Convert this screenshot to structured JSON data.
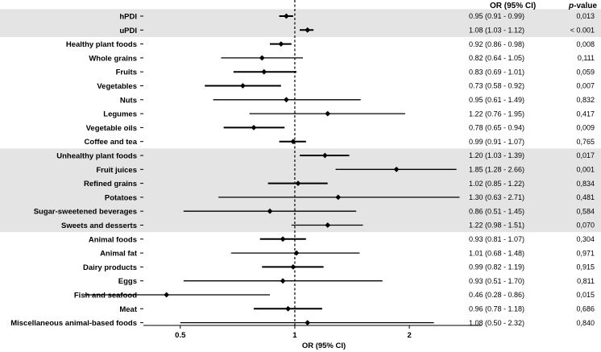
{
  "chart_data": {
    "type": "forest",
    "xlabel": "OR (95% CI)",
    "header": {
      "or_ci": "OR (95% CI)",
      "p_value_prefix": "p",
      "p_value_suffix": "-value"
    },
    "x_scale": "log",
    "xlim": [
      0.4,
      3.1
    ],
    "reference_line": 1,
    "x_ticks": [
      {
        "value": 0.5,
        "label": "0.5"
      },
      {
        "value": 1,
        "label": "1"
      },
      {
        "value": 2,
        "label": "2"
      }
    ],
    "shading": {
      "color": "#e4e4e4",
      "shaded_rows": [
        0,
        1,
        10,
        11,
        12,
        13,
        14,
        15
      ]
    },
    "rows": [
      {
        "label": "hPDI",
        "or": 0.95,
        "lo": 0.91,
        "hi": 0.99,
        "or_ci": "0.95 (0.91 - 0.99)",
        "p": "0,013"
      },
      {
        "label": "uPDI",
        "or": 1.08,
        "lo": 1.03,
        "hi": 1.12,
        "or_ci": "1.08 (1.03 - 1.12)",
        "p": "< 0.001"
      },
      {
        "label": "Healthy plant foods",
        "or": 0.92,
        "lo": 0.86,
        "hi": 0.98,
        "or_ci": "0.92 (0.86 - 0.98)",
        "p": "0,008"
      },
      {
        "label": "Whole grains",
        "or": 0.82,
        "lo": 0.64,
        "hi": 1.05,
        "or_ci": "0.82 (0.64 - 1.05)",
        "p": "0,111"
      },
      {
        "label": "Fruits",
        "or": 0.83,
        "lo": 0.69,
        "hi": 1.01,
        "or_ci": "0.83 (0.69 - 1.01)",
        "p": "0,059"
      },
      {
        "label": "Vegetables",
        "or": 0.73,
        "lo": 0.58,
        "hi": 0.92,
        "or_ci": "0.73 (0.58 - 0.92)",
        "p": "0,007"
      },
      {
        "label": "Nuts",
        "or": 0.95,
        "lo": 0.61,
        "hi": 1.49,
        "or_ci": "0.95 (0.61 - 1.49)",
        "p": "0,832"
      },
      {
        "label": "Legumes",
        "or": 1.22,
        "lo": 0.76,
        "hi": 1.95,
        "or_ci": "1.22 (0.76 - 1.95)",
        "p": "0,417"
      },
      {
        "label": "Vegetable oils",
        "or": 0.78,
        "lo": 0.65,
        "hi": 0.94,
        "or_ci": "0.78 (0.65 - 0.94)",
        "p": "0,009"
      },
      {
        "label": "Coffee and tea",
        "or": 0.99,
        "lo": 0.91,
        "hi": 1.07,
        "or_ci": "0.99 (0.91 - 1.07)",
        "p": "0,765"
      },
      {
        "label": "Unhealthy plant foods",
        "or": 1.2,
        "lo": 1.03,
        "hi": 1.39,
        "or_ci": "1.20 (1.03 - 1.39)",
        "p": "0,017"
      },
      {
        "label": "Fruit juices",
        "or": 1.85,
        "lo": 1.28,
        "hi": 2.66,
        "or_ci": "1.85 (1.28 - 2.66)",
        "p": "0,001"
      },
      {
        "label": "Refined grains",
        "or": 1.02,
        "lo": 0.85,
        "hi": 1.22,
        "or_ci": "1.02 (0.85 - 1.22)",
        "p": "0,834"
      },
      {
        "label": "Potatoes",
        "or": 1.3,
        "lo": 0.63,
        "hi": 2.71,
        "or_ci": "1.30 (0.63 - 2.71)",
        "p": "0,481"
      },
      {
        "label": "Sugar-sweetened beverages",
        "or": 0.86,
        "lo": 0.51,
        "hi": 1.45,
        "or_ci": "0.86 (0.51 - 1.45)",
        "p": "0,584"
      },
      {
        "label": "Sweets and desserts",
        "or": 1.22,
        "lo": 0.98,
        "hi": 1.51,
        "or_ci": "1.22 (0.98 - 1.51)",
        "p": "0,070"
      },
      {
        "label": "Animal foods",
        "or": 0.93,
        "lo": 0.81,
        "hi": 1.07,
        "or_ci": "0.93 (0.81 - 1.07)",
        "p": "0,304"
      },
      {
        "label": "Animal fat",
        "or": 1.01,
        "lo": 0.68,
        "hi": 1.48,
        "or_ci": "1.01 (0.68 - 1.48)",
        "p": "0,971"
      },
      {
        "label": "Dairy products",
        "or": 0.99,
        "lo": 0.82,
        "hi": 1.19,
        "or_ci": "0.99 (0.82 - 1.19)",
        "p": "0,915"
      },
      {
        "label": "Eggs",
        "or": 0.93,
        "lo": 0.51,
        "hi": 1.7,
        "or_ci": "0.93 (0.51 - 1.70)",
        "p": "0,811"
      },
      {
        "label": "Fish and seafood",
        "or": 0.46,
        "lo": 0.28,
        "hi": 0.86,
        "or_ci": "0.46 (0.28 - 0.86)",
        "p": "0,015"
      },
      {
        "label": "Meat",
        "or": 0.96,
        "lo": 0.78,
        "hi": 1.18,
        "or_ci": "0.96 (0.78 - 1.18)",
        "p": "0,686"
      },
      {
        "label": "Miscellaneous animal-based foods",
        "or": 1.08,
        "lo": 0.5,
        "hi": 2.32,
        "or_ci": "1.08 (0.50 - 2.32)",
        "p": "0,840"
      }
    ]
  }
}
